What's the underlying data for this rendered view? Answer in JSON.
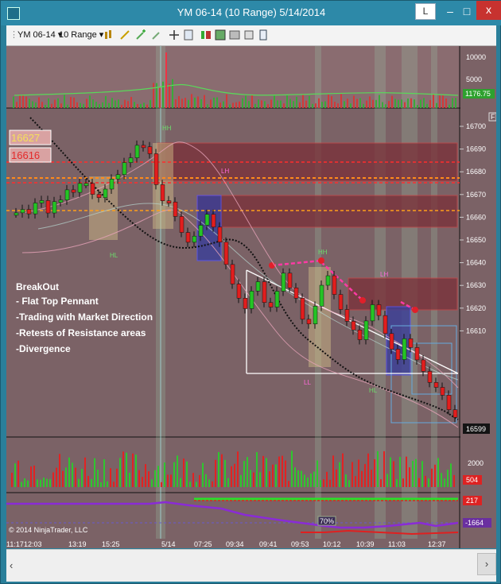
{
  "window": {
    "title": "YM 06-14 (10 Range)  5/14/2014",
    "btn_l": "L",
    "btn_min": "–",
    "btn_max": "□",
    "btn_close": "x"
  },
  "toolbar": {
    "instrument": "YM 06-14",
    "interval": "10 Range"
  },
  "annotation": {
    "heading": "BreakOut",
    "lines": [
      "- Flat Top Pennant",
      "-Trading with Market Direction",
      "-Retests of Resistance areas",
      "-Divergence"
    ]
  },
  "price_axis": {
    "ticks": [
      "16700",
      "16690",
      "16680",
      "16670",
      "16660",
      "16650",
      "16640",
      "16630",
      "16620",
      "16610"
    ],
    "last": "16599"
  },
  "volume_axis": {
    "ticks": [
      "10000",
      "5000"
    ],
    "last": "1176.75"
  },
  "volume2_axis": {
    "ticks": [
      "2000"
    ],
    "last": "504"
  },
  "osc_axis": {
    "top": "217",
    "last": "-1664"
  },
  "levels": {
    "upper": "16627",
    "lower": "16616"
  },
  "osc_badge": "70%",
  "copyright": "© 2014 NinjaTrader, LLC",
  "time_axis": [
    "11:17",
    "12:03",
    "13:19",
    "15:25",
    "5/14",
    "07:25",
    "09:34",
    "09:41",
    "09:53",
    "10:12",
    "10:39",
    "11:03",
    "12:37"
  ],
  "labels": {
    "hh1": "HH",
    "hh2": "HH",
    "hl1": "HL",
    "hl2": "HL",
    "lh1": "LH",
    "lh2": "LH",
    "ll": "LL"
  },
  "panel_flag": "F",
  "colors": {
    "up": "#25c425",
    "down": "#e21e1e",
    "bg": "#7b6266",
    "zone": "#8a3b45"
  }
}
